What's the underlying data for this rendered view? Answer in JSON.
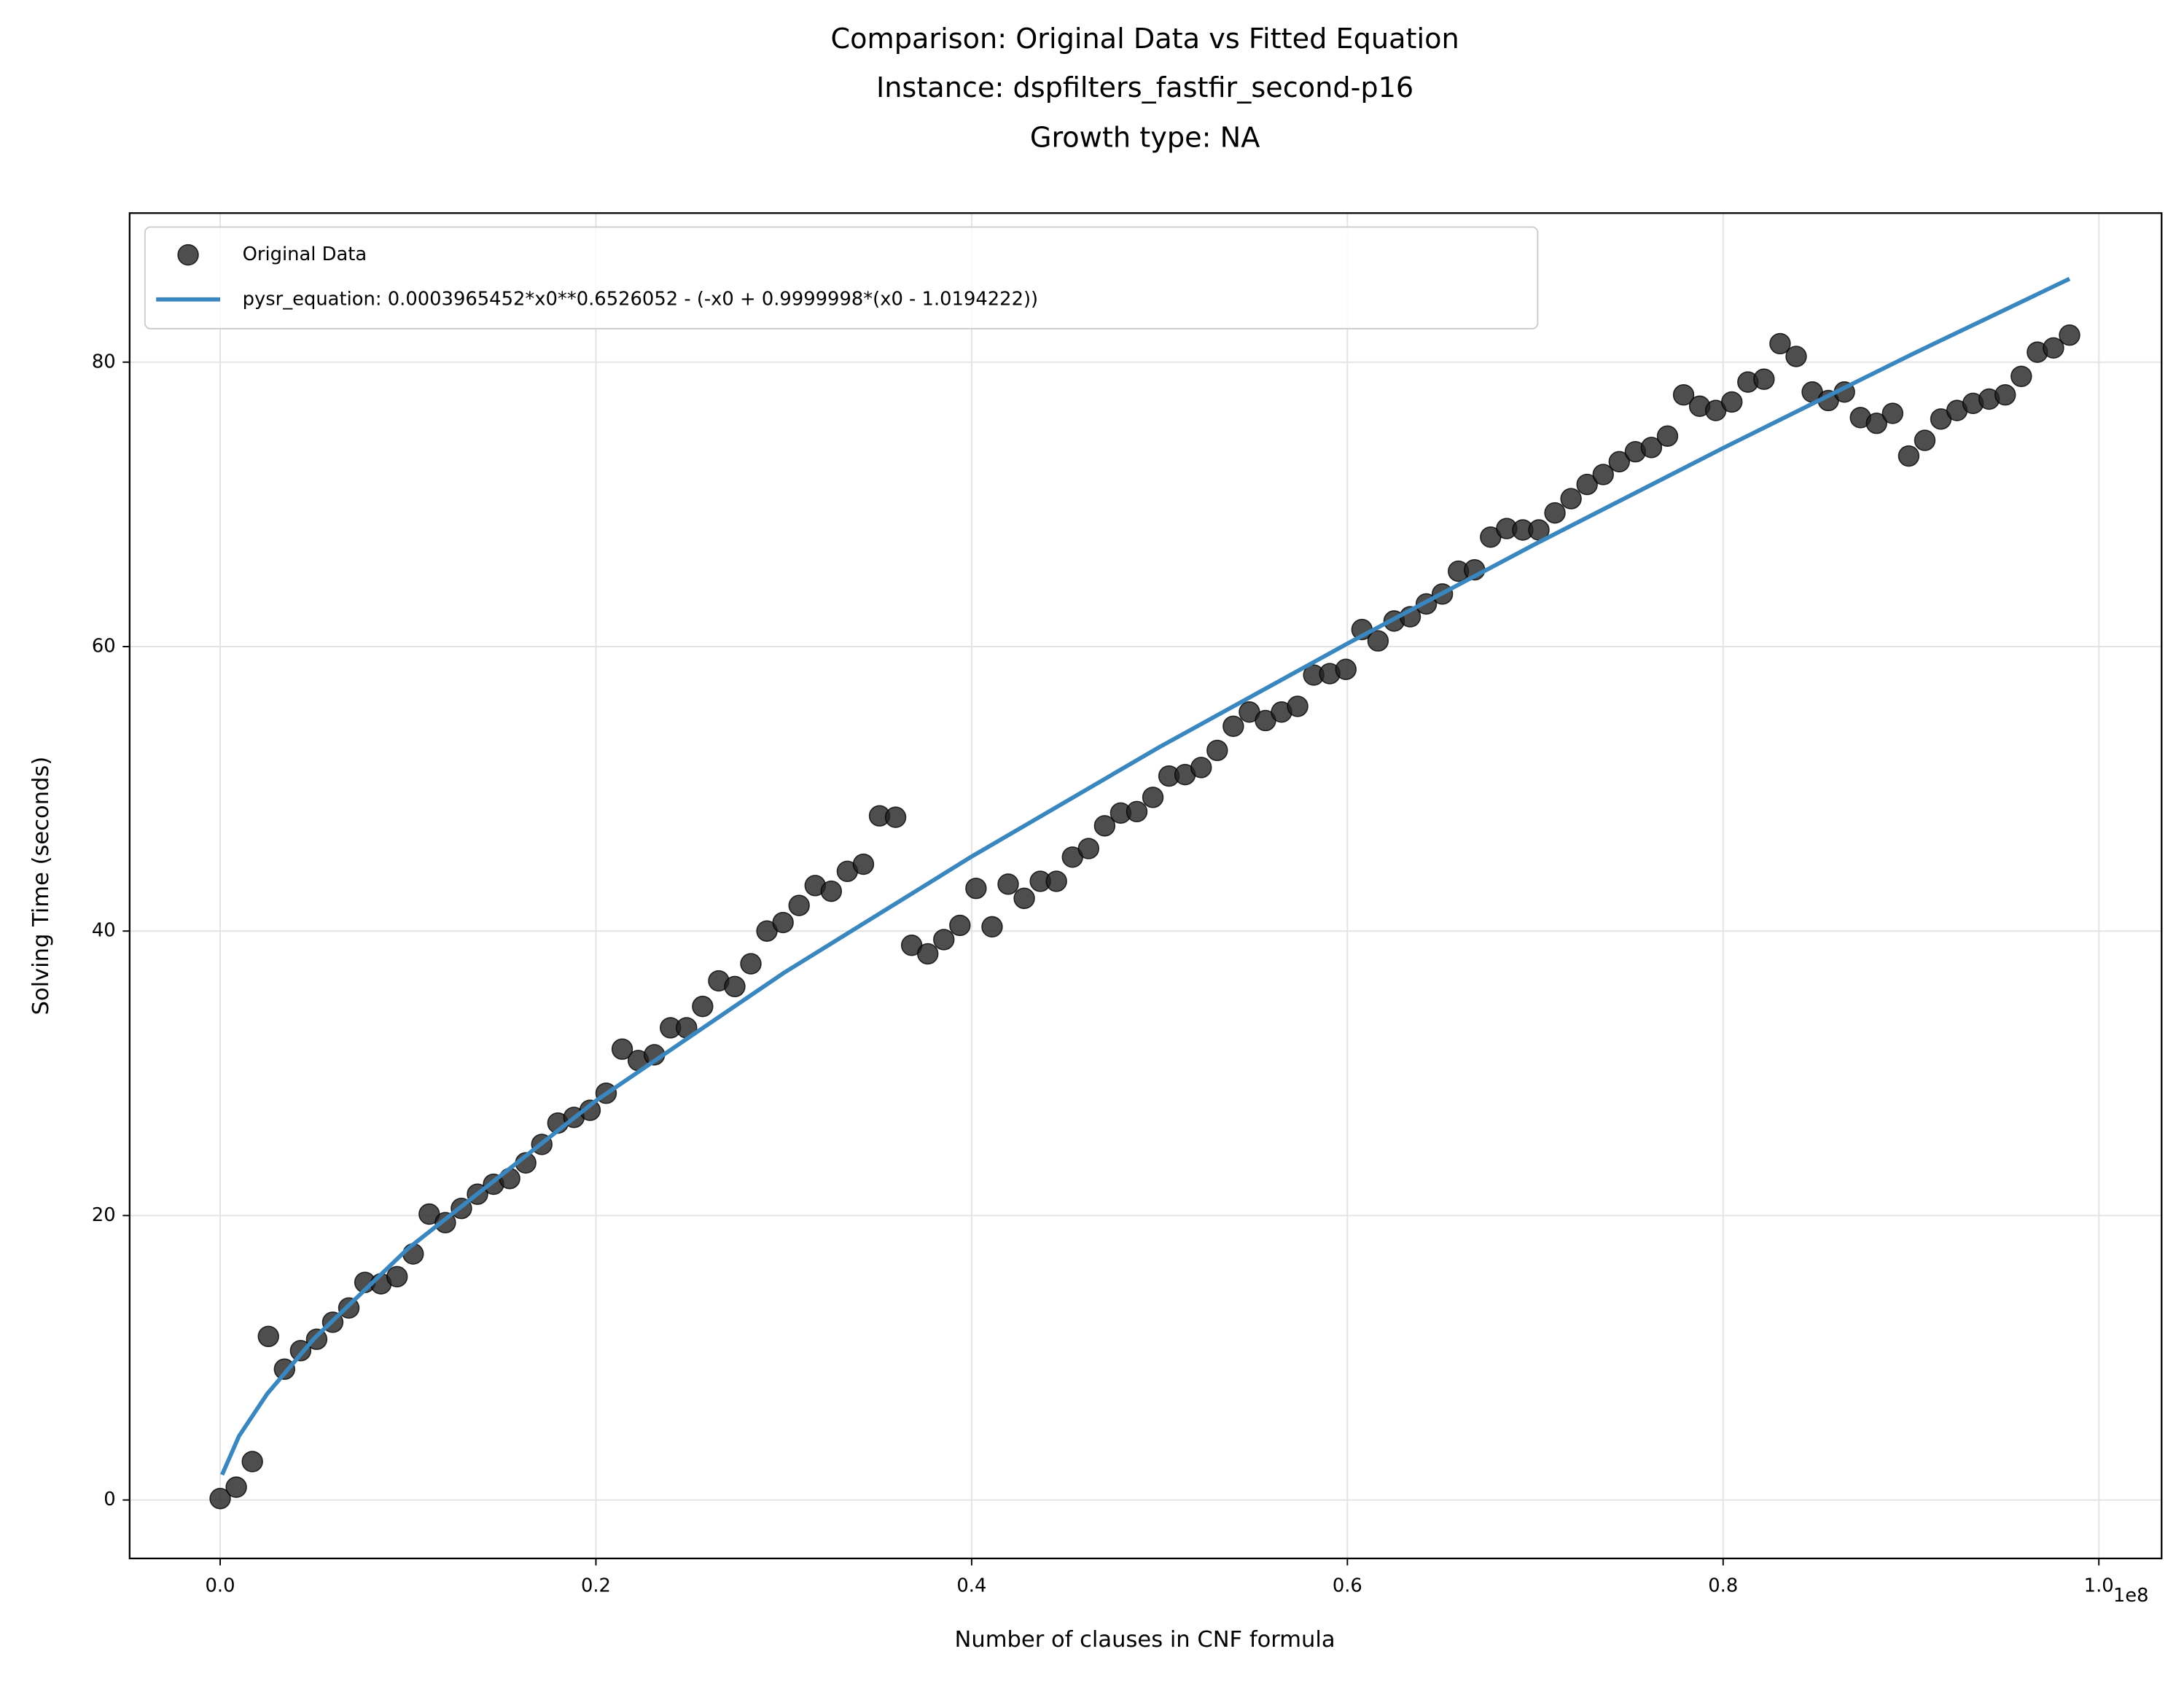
{
  "chart_data": {
    "type": "scatter",
    "title": [
      "Comparison: Original Data vs Fitted Equation",
      "Instance: dspfilters_fastfir_second-p16",
      "Growth type: NA"
    ],
    "xlabel": "Number of clauses in CNF formula",
    "ylabel": "Solving Time (seconds)",
    "x_offset_label": "1e8",
    "xlim": [
      -4820000,
      103340000
    ],
    "ylim": [
      -4.11,
      90.48
    ],
    "xticks": [
      {
        "value": 0,
        "label": "0.0"
      },
      {
        "value": 20000000,
        "label": "0.2"
      },
      {
        "value": 40000000,
        "label": "0.4"
      },
      {
        "value": 60000000,
        "label": "0.6"
      },
      {
        "value": 80000000,
        "label": "0.8"
      },
      {
        "value": 100000000,
        "label": "1.0"
      }
    ],
    "yticks": [
      0,
      20,
      40,
      60,
      80
    ],
    "grid": true,
    "legend": "upper left",
    "series": [
      {
        "name": "Original Data",
        "type": "scatter",
        "color": "#222222",
        "x": [
          0,
          856000,
          1712000,
          2568000,
          3424000,
          4280000,
          5136000,
          5992000,
          6848000,
          7704000,
          8560000,
          9416000,
          10272000,
          11128000,
          11984000,
          12840000,
          13696000,
          14552000,
          15408000,
          16264000,
          17120000,
          17976000,
          18832000,
          19688000,
          20544000,
          21400000,
          22256000,
          23112000,
          23968000,
          24824000,
          25680000,
          26536000,
          27392000,
          28248000,
          29104000,
          29960000,
          30816000,
          31672000,
          32528000,
          33384000,
          34240000,
          35096000,
          35952000,
          36808000,
          37664000,
          38520000,
          39376000,
          40232000,
          41088000,
          41944000,
          42800000,
          43656000,
          44512000,
          45368000,
          46224000,
          47080000,
          47936000,
          48792000,
          49648000,
          50504000,
          51360000,
          52216000,
          53072000,
          53928000,
          54784000,
          55640000,
          56496000,
          57352000,
          58208000,
          59064000,
          59920000,
          60776000,
          61632000,
          62488000,
          63344000,
          64200000,
          65056000,
          65912000,
          66768000,
          67624000,
          68480000,
          69336000,
          70192000,
          71048000,
          71904000,
          72760000,
          73616000,
          74472000,
          75328000,
          76184000,
          77040000,
          77896000,
          78752000,
          79608000,
          80464000,
          81320000,
          82176000,
          83032000,
          83888000,
          84744000,
          85600000,
          86456000,
          87312000,
          88168000,
          89024000,
          89880000,
          90736000,
          91592000,
          92448000,
          93304000,
          94160000,
          95016000,
          95872000,
          96728000,
          97584000,
          98440000
        ],
        "values": [
          0.1,
          0.9,
          2.7,
          11.5,
          9.2,
          10.5,
          11.3,
          12.5,
          13.5,
          15.3,
          15.2,
          15.7,
          17.3,
          20.1,
          19.5,
          20.5,
          21.5,
          22.2,
          22.6,
          23.7,
          25.0,
          26.5,
          26.9,
          27.4,
          28.6,
          31.7,
          30.9,
          31.3,
          33.2,
          33.2,
          34.7,
          36.5,
          36.1,
          37.7,
          40.0,
          40.6,
          41.8,
          43.2,
          42.8,
          44.2,
          44.7,
          48.1,
          48.0,
          39.0,
          38.4,
          39.4,
          40.4,
          43.0,
          40.3,
          43.3,
          42.3,
          43.5,
          43.5,
          45.2,
          45.8,
          47.4,
          48.3,
          48.4,
          49.4,
          50.9,
          51.0,
          51.5,
          52.7,
          54.4,
          55.4,
          54.8,
          55.4,
          55.8,
          58.0,
          58.1,
          58.4,
          61.2,
          60.4,
          61.8,
          62.1,
          63.0,
          63.7,
          65.3,
          65.4,
          67.7,
          68.3,
          68.2,
          68.2,
          69.4,
          70.4,
          71.4,
          72.1,
          73.0,
          73.7,
          74.0,
          74.8,
          77.7,
          76.9,
          76.6,
          77.2,
          78.6,
          78.8,
          81.3,
          80.4,
          77.9,
          77.3,
          77.9,
          76.1,
          75.7,
          76.4,
          73.4,
          74.5,
          76.0,
          76.6,
          77.1,
          77.4,
          77.7,
          79.0,
          80.7,
          81.0,
          81.9
        ]
      },
      {
        "name": "pysr_equation: 0.0003965452*x0**0.6526052 - (-x0 + 0.9999998*(x0 - 1.0194222))",
        "type": "line",
        "color": "#3a87c0",
        "x": [
          100000,
          1000000,
          2500000,
          5000000,
          10000000,
          20000000,
          30000000,
          40000000,
          50000000,
          60000000,
          70000000,
          80000000,
          90000000,
          98440000
        ],
        "values": [
          1.77,
          4.49,
          7.46,
          11.35,
          17.68,
          28.07,
          37.06,
          45.24,
          52.94,
          60.21,
          67.21,
          73.96,
          80.52,
          85.86
        ]
      }
    ]
  }
}
